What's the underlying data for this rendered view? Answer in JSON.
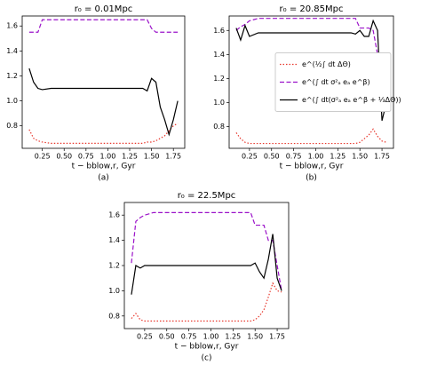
{
  "chart_data": [
    {
      "type": "line",
      "title": "r₀ = 0.01Mpc",
      "xlabel": "t − bblow,r, Gyr",
      "panel_label": "(a)",
      "x": [
        0.1,
        0.15,
        0.2,
        0.25,
        0.35,
        0.5,
        0.75,
        1.0,
        1.25,
        1.4,
        1.45,
        1.5,
        1.55,
        1.6,
        1.65,
        1.7,
        1.75,
        1.8
      ],
      "xlim": [
        0.02,
        1.88
      ],
      "ylim": [
        0.62,
        1.68
      ],
      "xticks": [
        0.25,
        {
          "value": 0.5,
          "label": "0.50"
        },
        0.75,
        {
          "value": 1.0,
          "label": "1.00"
        },
        1.25,
        {
          "value": 1.5,
          "label": "1.50"
        },
        1.75
      ],
      "yticks": [
        0.8,
        {
          "value": 1.0,
          "label": "1.0"
        },
        1.2,
        1.4,
        1.6
      ],
      "series": [
        {
          "color": "#e8372c",
          "linestyle": "dotted",
          "values": [
            0.77,
            0.7,
            0.68,
            0.67,
            0.66,
            0.66,
            0.66,
            0.66,
            0.66,
            0.66,
            0.67,
            0.67,
            0.68,
            0.7,
            0.72,
            0.76,
            0.8,
            0.82
          ]
        },
        {
          "color": "#9b12c9",
          "linestyle": "dashed",
          "values": [
            1.55,
            1.55,
            1.55,
            1.65,
            1.65,
            1.65,
            1.65,
            1.65,
            1.65,
            1.65,
            1.65,
            1.58,
            1.55,
            1.55,
            1.55,
            1.55,
            1.55,
            1.55
          ]
        },
        {
          "color": "#000000",
          "linestyle": "solid",
          "values": [
            1.26,
            1.15,
            1.1,
            1.09,
            1.1,
            1.1,
            1.1,
            1.1,
            1.1,
            1.1,
            1.08,
            1.18,
            1.15,
            0.95,
            0.85,
            0.73,
            0.85,
            1.0
          ]
        }
      ]
    },
    {
      "type": "line",
      "title": "r₀ = 20.85Mpc",
      "xlabel": "t − bblow,r, Gyr",
      "panel_label": "(b)",
      "legend": "center right",
      "x": [
        0.1,
        0.15,
        0.2,
        0.25,
        0.35,
        0.5,
        0.75,
        1.0,
        1.25,
        1.4,
        1.45,
        1.5,
        1.55,
        1.6,
        1.65,
        1.7,
        1.75,
        1.8
      ],
      "xlim": [
        0.02,
        1.88
      ],
      "ylim": [
        0.62,
        1.72
      ],
      "xticks": [
        0.25,
        {
          "value": 0.5,
          "label": "0.50"
        },
        0.75,
        {
          "value": 1.0,
          "label": "1.00"
        },
        1.25,
        {
          "value": 1.5,
          "label": "1.50"
        },
        1.75
      ],
      "yticks": [
        0.8,
        {
          "value": 1.0,
          "label": "1.0"
        },
        1.2,
        1.4,
        1.6
      ],
      "series": [
        {
          "name": "e^(½∫ dt ΔΘ)",
          "color": "#e8372c",
          "linestyle": "dotted",
          "values": [
            0.75,
            0.7,
            0.67,
            0.66,
            0.66,
            0.66,
            0.66,
            0.66,
            0.66,
            0.66,
            0.66,
            0.67,
            0.7,
            0.73,
            0.78,
            0.72,
            0.68,
            0.67
          ]
        },
        {
          "name": "e^(∫ dt σ²ₐ eₐ e^β)",
          "color": "#9b12c9",
          "linestyle": "dashed",
          "values": [
            1.6,
            1.63,
            1.65,
            1.68,
            1.7,
            1.7,
            1.7,
            1.7,
            1.7,
            1.7,
            1.7,
            1.62,
            1.62,
            1.62,
            1.6,
            1.4,
            1.1,
            0.98
          ]
        },
        {
          "name": "e^(∫ dt(σ²ₐ eₐ e^β + ⅓ΔΘ))",
          "color": "#000000",
          "linestyle": "solid",
          "values": [
            1.62,
            1.52,
            1.64,
            1.55,
            1.58,
            1.58,
            1.58,
            1.58,
            1.58,
            1.58,
            1.57,
            1.6,
            1.55,
            1.55,
            1.68,
            1.6,
            0.85,
            1.0
          ]
        }
      ]
    },
    {
      "type": "line",
      "title": "r₀ = 22.5Mpc",
      "xlabel": "t − bblow,r, Gyr",
      "panel_label": "(c)",
      "x": [
        0.1,
        0.15,
        0.2,
        0.25,
        0.35,
        0.5,
        0.75,
        1.0,
        1.25,
        1.4,
        1.45,
        1.5,
        1.55,
        1.6,
        1.65,
        1.7,
        1.75,
        1.8
      ],
      "xlim": [
        0.02,
        1.88
      ],
      "ylim": [
        0.7,
        1.7
      ],
      "xticks": [
        0.25,
        {
          "value": 0.5,
          "label": "0.50"
        },
        0.75,
        {
          "value": 1.0,
          "label": "1.00"
        },
        1.25,
        {
          "value": 1.5,
          "label": "1.50"
        },
        1.75
      ],
      "yticks": [
        0.8,
        {
          "value": 1.0,
          "label": "1.0"
        },
        1.2,
        1.4,
        1.6
      ],
      "series": [
        {
          "color": "#e8372c",
          "linestyle": "dotted",
          "values": [
            0.78,
            0.82,
            0.77,
            0.76,
            0.76,
            0.76,
            0.76,
            0.76,
            0.76,
            0.76,
            0.76,
            0.77,
            0.8,
            0.85,
            0.95,
            1.06,
            1.0,
            0.99
          ]
        },
        {
          "color": "#9b12c9",
          "linestyle": "dashed",
          "values": [
            1.22,
            1.55,
            1.58,
            1.6,
            1.62,
            1.62,
            1.62,
            1.62,
            1.62,
            1.62,
            1.62,
            1.52,
            1.52,
            1.52,
            1.4,
            1.4,
            1.2,
            1.0
          ]
        },
        {
          "color": "#000000",
          "linestyle": "solid",
          "values": [
            0.97,
            1.2,
            1.18,
            1.2,
            1.2,
            1.2,
            1.2,
            1.2,
            1.2,
            1.2,
            1.2,
            1.22,
            1.15,
            1.1,
            1.25,
            1.45,
            1.1,
            1.0
          ]
        }
      ]
    }
  ]
}
